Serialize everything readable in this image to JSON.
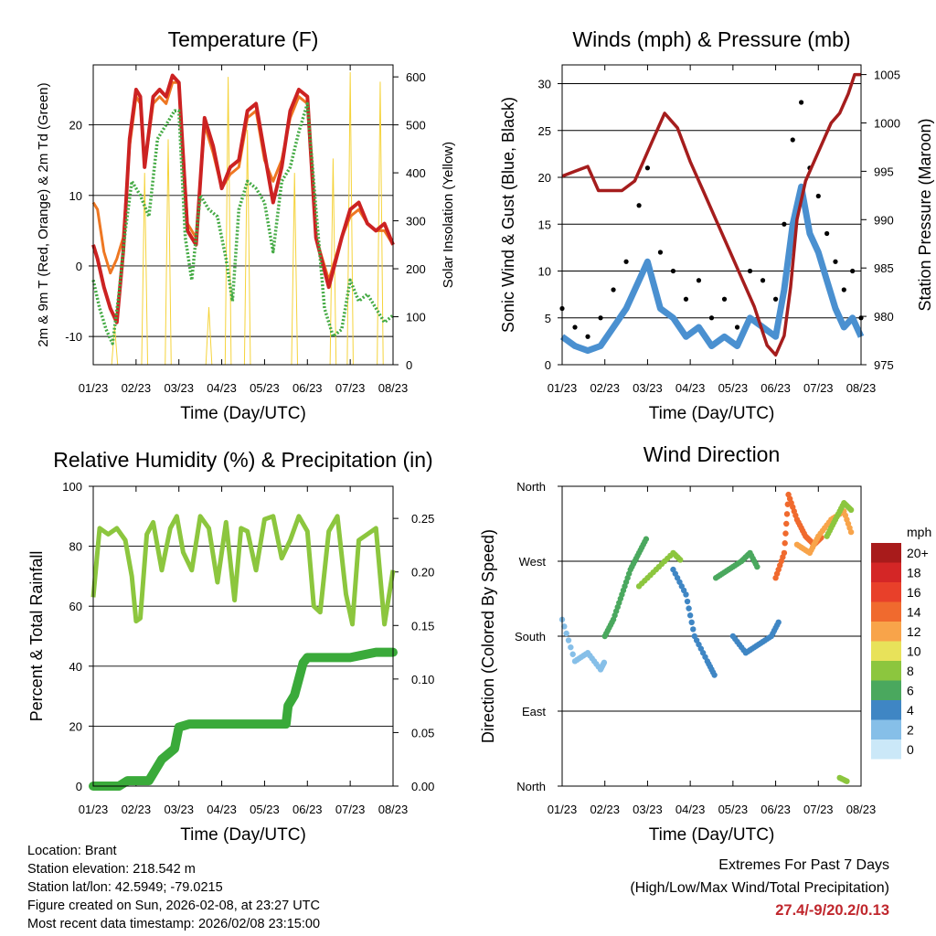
{
  "page": {
    "location": "Location: Brant",
    "elevation": "Station elevation: 218.542 m",
    "latlon": "Station lat/lon: 42.5949; -79.0215",
    "created": "Figure created on Sun, 2026-02-08, at 23:27 UTC",
    "recent": "Most recent data timestamp: 2026/02/08 23:15:00",
    "extremes_title": "Extremes For Past 7 Days",
    "extremes_sub": "(High/Low/Max Wind/Total Precipitation)",
    "extremes_values": "27.4/-9/20.2/0.13"
  },
  "colors": {
    "temp": "#cc2222",
    "temp9": "#ee7722",
    "dew": "#44aa44",
    "solar": "#f5d33b",
    "wind": "#4a90d0",
    "gust": "#000000",
    "pressure": "#a51d1d",
    "rh": "#8cc63e",
    "precip": "#3aaa3a"
  },
  "chart_data": [
    {
      "id": "temp",
      "type": "line",
      "title": "Temperature (F)",
      "xlabel": "Time (Day/UTC)",
      "ylabel": "2m & 9m T (Red, Orange) & 2m Td (Green)",
      "ylabel_right": "Solar Insolation (Yellow)",
      "x_ticks": [
        "01/23",
        "02/23",
        "03/23",
        "04/23",
        "05/23",
        "06/23",
        "07/23",
        "08/23"
      ],
      "ylim": [
        -14,
        28.5
      ],
      "y_ticks": [
        -10,
        0,
        10,
        20
      ],
      "ylim_right": [
        0,
        625
      ],
      "y_ticks_right": [
        0,
        100,
        200,
        300,
        400,
        500,
        600
      ],
      "grid": true,
      "series": [
        {
          "name": "2m T",
          "color": "#cc2222",
          "x": [
            0,
            0.1,
            0.25,
            0.4,
            0.55,
            0.7,
            0.85,
            1.0,
            1.1,
            1.2,
            1.4,
            1.55,
            1.7,
            1.85,
            2.0,
            2.2,
            2.4,
            2.6,
            2.8,
            3.0,
            3.2,
            3.4,
            3.6,
            3.8,
            4.0,
            4.2,
            4.4,
            4.6,
            4.8,
            5.0,
            5.2,
            5.5,
            5.8,
            6.0,
            6.2,
            6.4,
            6.6,
            6.8,
            7.0
          ],
          "y": [
            3,
            1,
            -3,
            -6,
            -8,
            2,
            18,
            25,
            24,
            14,
            24,
            25,
            24,
            27,
            26,
            5,
            3,
            21,
            17,
            11,
            14,
            15,
            22,
            23,
            16,
            9,
            14,
            22,
            25,
            24,
            4,
            -3,
            4,
            8,
            9,
            6,
            5,
            6,
            3
          ]
        },
        {
          "name": "9m T",
          "color": "#ee7722",
          "x": [
            0,
            0.1,
            0.25,
            0.4,
            0.55,
            0.7,
            0.85,
            1.0,
            1.1,
            1.2,
            1.4,
            1.55,
            1.7,
            1.85,
            2.0,
            2.2,
            2.4,
            2.6,
            2.8,
            3.0,
            3.2,
            3.4,
            3.6,
            3.8,
            4.0,
            4.2,
            4.4,
            4.6,
            4.8,
            5.0,
            5.2,
            5.5,
            5.8,
            6.0,
            6.2,
            6.4,
            6.6,
            6.8,
            7.0
          ],
          "y": [
            9,
            8,
            2,
            -1,
            1,
            4,
            17,
            24,
            23,
            14,
            23,
            24,
            23,
            26,
            26,
            6,
            4,
            20,
            16,
            11,
            13,
            14,
            21,
            22,
            15,
            12,
            15,
            21,
            24,
            23,
            4,
            -2,
            4,
            7,
            8,
            6,
            5,
            5,
            3
          ]
        },
        {
          "name": "2m Td",
          "color": "#44aa44",
          "x": [
            0,
            0.15,
            0.3,
            0.45,
            0.6,
            0.75,
            0.9,
            1.1,
            1.3,
            1.5,
            1.7,
            1.9,
            2.0,
            2.15,
            2.3,
            2.5,
            2.7,
            2.9,
            3.1,
            3.25,
            3.4,
            3.6,
            3.8,
            4.0,
            4.2,
            4.4,
            4.6,
            4.8,
            5.0,
            5.2,
            5.4,
            5.6,
            5.8,
            6.0,
            6.2,
            6.4,
            6.6,
            6.8,
            7.0
          ],
          "y": [
            -2,
            -6,
            -9,
            -11,
            -4,
            5,
            12,
            10,
            7,
            18,
            20,
            22,
            22,
            4,
            -2,
            10,
            8,
            7,
            1,
            -5,
            8,
            12,
            11,
            9,
            2,
            12,
            14,
            19,
            23,
            8,
            -6,
            -10,
            -9,
            -2,
            -5,
            -4,
            -6,
            -8,
            -7
          ]
        }
      ],
      "solar": {
        "name": "Solar Insolation",
        "color": "#f5d33b",
        "peak_x": [
          0.5,
          1.2,
          1.75,
          2.7,
          3.15,
          3.6,
          4.7,
          5.6,
          6.0,
          6.7
        ],
        "peak_y": [
          80,
          400,
          470,
          120,
          600,
          490,
          400,
          430,
          610,
          590
        ]
      }
    },
    {
      "id": "wind",
      "type": "line",
      "title": "Winds (mph) & Pressure (mb)",
      "xlabel": "Time (Day/UTC)",
      "ylabel": "Sonic Wind & Gust (Blue, Black)",
      "ylabel_right": "Station Pressure (Maroon)",
      "x_ticks": [
        "01/23",
        "02/23",
        "03/23",
        "04/23",
        "05/23",
        "06/23",
        "07/23",
        "08/23"
      ],
      "ylim": [
        0,
        32
      ],
      "y_ticks": [
        0,
        5,
        10,
        15,
        20,
        25,
        30
      ],
      "ylim_right": [
        975,
        1006
      ],
      "y_ticks_right": [
        975,
        980,
        985,
        990,
        995,
        1000,
        1005
      ],
      "grid": true,
      "series": [
        {
          "name": "Wind",
          "color": "#4a90d0",
          "x": [
            0,
            0.3,
            0.6,
            0.9,
            1.2,
            1.5,
            1.8,
            2.0,
            2.3,
            2.6,
            2.9,
            3.2,
            3.5,
            3.8,
            4.1,
            4.4,
            4.7,
            5.0,
            5.2,
            5.4,
            5.6,
            5.8,
            6.0,
            6.2,
            6.4,
            6.6,
            6.8,
            7.0
          ],
          "y": [
            3,
            2,
            1.5,
            2,
            4,
            6,
            9,
            11,
            6,
            5,
            3,
            4,
            2,
            3,
            2,
            5,
            4,
            3,
            8,
            15,
            19,
            14,
            12,
            9,
            6,
            4,
            5,
            3
          ]
        },
        {
          "name": "Gust",
          "color": "#000000",
          "x": [
            0,
            0.3,
            0.6,
            0.9,
            1.2,
            1.5,
            1.8,
            2.0,
            2.3,
            2.6,
            2.9,
            3.2,
            3.5,
            3.8,
            4.1,
            4.4,
            4.7,
            5.0,
            5.2,
            5.4,
            5.6,
            5.8,
            6.0,
            6.2,
            6.4,
            6.6,
            6.8,
            7.0
          ],
          "y": [
            6,
            4,
            3,
            5,
            8,
            11,
            17,
            21,
            12,
            10,
            7,
            9,
            5,
            7,
            4,
            10,
            9,
            7,
            15,
            24,
            28,
            21,
            18,
            14,
            11,
            8,
            10,
            5
          ]
        },
        {
          "name": "Pressure",
          "color": "#a51d1d",
          "axis": "right",
          "x": [
            0,
            0.3,
            0.6,
            0.85,
            1.1,
            1.4,
            1.7,
            1.9,
            2.1,
            2.4,
            2.7,
            3.0,
            3.3,
            3.6,
            3.9,
            4.2,
            4.5,
            4.8,
            5.0,
            5.2,
            5.35,
            5.5,
            5.7,
            5.9,
            6.1,
            6.3,
            6.5,
            6.7,
            6.85,
            7.0
          ],
          "y": [
            994.5,
            995,
            995.5,
            993,
            993,
            993,
            994,
            996,
            998,
            1001,
            999.5,
            996,
            993,
            990,
            987,
            984,
            981,
            977,
            976,
            978,
            983,
            990,
            994,
            996,
            998,
            1000,
            1001,
            1003,
            1005,
            1005
          ]
        }
      ]
    },
    {
      "id": "rh",
      "type": "line",
      "title": "Relative Humidity (%) & Precipitation (in)",
      "xlabel": "Time (Day/UTC)",
      "ylabel": "Percent & Total Rainfall",
      "x_ticks": [
        "01/23",
        "02/23",
        "03/23",
        "04/23",
        "05/23",
        "06/23",
        "07/23",
        "08/23"
      ],
      "ylim": [
        0,
        100
      ],
      "y_ticks": [
        0,
        20,
        40,
        60,
        80,
        100
      ],
      "ylim_right": [
        0,
        0.28
      ],
      "y_ticks_right": [
        "0.00",
        "0.05",
        "0.10",
        "0.15",
        "0.20",
        "0.25"
      ],
      "grid": true,
      "series": [
        {
          "name": "RH",
          "color": "#8cc63e",
          "x": [
            0,
            0.15,
            0.35,
            0.55,
            0.75,
            0.9,
            1.0,
            1.1,
            1.25,
            1.4,
            1.6,
            1.8,
            1.95,
            2.1,
            2.3,
            2.5,
            2.7,
            2.9,
            3.1,
            3.3,
            3.45,
            3.6,
            3.8,
            4.0,
            4.2,
            4.4,
            4.6,
            4.8,
            5.0,
            5.15,
            5.3,
            5.5,
            5.7,
            5.9,
            6.05,
            6.2,
            6.4,
            6.6,
            6.8,
            7.0
          ],
          "y": [
            63,
            86,
            84,
            86,
            82,
            70,
            55,
            56,
            84,
            88,
            72,
            86,
            90,
            78,
            72,
            90,
            86,
            68,
            88,
            62,
            86,
            85,
            72,
            89,
            90,
            76,
            82,
            90,
            85,
            60,
            58,
            85,
            90,
            64,
            54,
            82,
            84,
            86,
            54,
            72
          ]
        },
        {
          "name": "Total Rainfall",
          "color": "#3aaa3a",
          "axis": "right",
          "x": [
            0,
            0.6,
            0.8,
            1.3,
            1.45,
            1.6,
            1.75,
            1.9,
            2.0,
            2.25,
            3.0,
            4.0,
            4.5,
            4.55,
            4.7,
            4.8,
            4.9,
            5.0,
            5.5,
            6.0,
            6.6,
            7.0
          ],
          "y": [
            0,
            0,
            0.005,
            0.005,
            0.015,
            0.025,
            0.03,
            0.035,
            0.055,
            0.058,
            0.058,
            0.058,
            0.058,
            0.075,
            0.085,
            0.1,
            0.115,
            0.12,
            0.12,
            0.12,
            0.125,
            0.125
          ]
        }
      ]
    },
    {
      "id": "dir",
      "type": "scatter",
      "title": "Wind Direction",
      "xlabel": "Time (Day/UTC)",
      "ylabel": "Direction (Colored By Speed)",
      "x_ticks": [
        "01/23",
        "02/23",
        "03/23",
        "04/23",
        "05/23",
        "06/23",
        "07/23",
        "08/23"
      ],
      "y_labels": [
        "North",
        "East",
        "South",
        "West",
        "North"
      ],
      "ylim": [
        0,
        360
      ],
      "grid": true,
      "colorbar": {
        "title": "mph",
        "labels": [
          "20+",
          "18",
          "16",
          "14",
          "12",
          "10",
          "8",
          "6",
          "4",
          "2",
          "0"
        ],
        "colors": [
          "#a81b1b",
          "#d42626",
          "#e8402a",
          "#f06a2e",
          "#f8a44a",
          "#e8e25a",
          "#8cc63e",
          "#4aa85e",
          "#3f86c4",
          "#86bfe8",
          "#cbe8f8"
        ]
      },
      "tracks": [
        {
          "x": [
            0.0,
            0.3,
            0.6,
            0.9,
            1.0
          ],
          "y": [
            200,
            150,
            160,
            140,
            150
          ],
          "speed": 2
        },
        {
          "x": [
            1.0,
            1.2,
            1.4,
            1.6,
            1.8,
            2.0
          ],
          "y": [
            180,
            200,
            230,
            260,
            280,
            300
          ],
          "speed": 5
        },
        {
          "x": [
            1.8,
            2.2,
            2.6,
            2.8
          ],
          "y": [
            240,
            260,
            280,
            270
          ],
          "speed": 8
        },
        {
          "x": [
            2.6,
            2.9,
            3.1,
            3.4,
            3.6
          ],
          "y": [
            260,
            230,
            180,
            150,
            130
          ],
          "speed": 3
        },
        {
          "x": [
            3.6,
            3.9,
            4.2,
            4.4,
            4.6
          ],
          "y": [
            250,
            260,
            270,
            280,
            260
          ],
          "speed": 5
        },
        {
          "x": [
            4.0,
            4.3,
            4.6,
            4.9,
            5.1
          ],
          "y": [
            180,
            160,
            170,
            180,
            200
          ],
          "speed": 3
        },
        {
          "x": [
            5.0,
            5.2,
            5.3,
            5.5,
            5.7,
            5.9,
            6.1
          ],
          "y": [
            250,
            280,
            350,
            320,
            300,
            290,
            300
          ],
          "speed": 14
        },
        {
          "x": [
            5.5,
            5.8,
            6.0,
            6.3,
            6.6,
            6.8
          ],
          "y": [
            290,
            280,
            300,
            320,
            330,
            300
          ],
          "speed": 11
        },
        {
          "x": [
            6.2,
            6.4,
            6.6,
            6.8
          ],
          "y": [
            300,
            320,
            340,
            330
          ],
          "speed": 7
        },
        {
          "x": [
            6.5,
            6.7
          ],
          "y": [
            10,
            5
          ],
          "speed": 8
        }
      ]
    }
  ]
}
